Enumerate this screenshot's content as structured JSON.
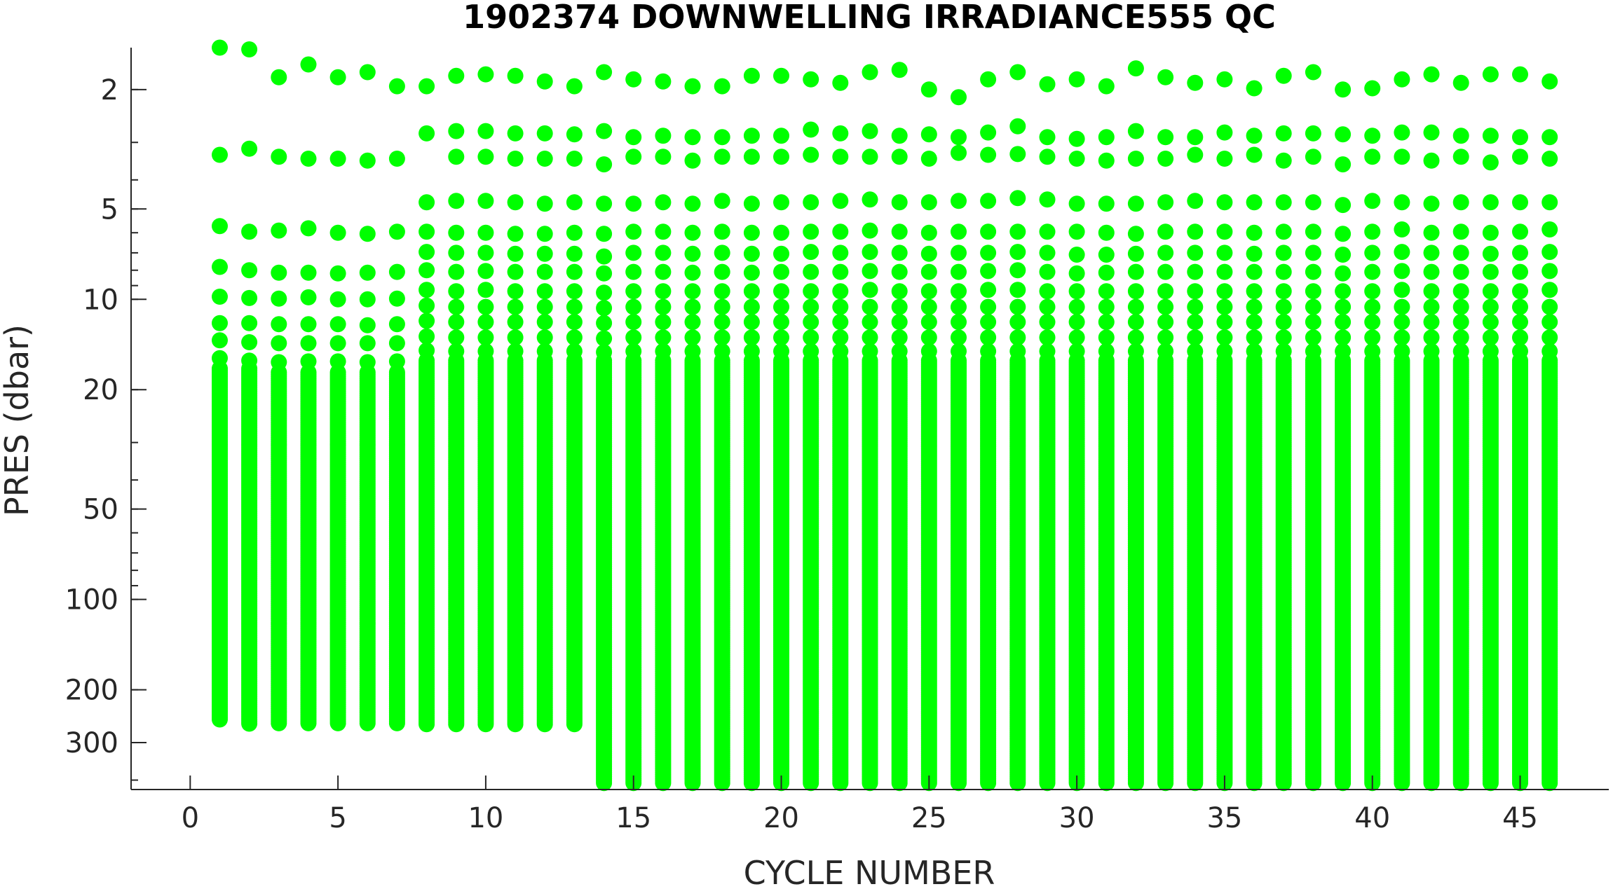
{
  "chart_data": {
    "type": "scatter",
    "title": "1902374  DOWNWELLING IRRADIANCE555 QC",
    "xlabel": "CYCLE NUMBER",
    "ylabel": "PRES (dbar)",
    "xlim": [
      -2,
      48
    ],
    "ylim": [
      1.45,
      430
    ],
    "y_scale": "log",
    "y_reversed": true,
    "grid": false,
    "legend": "none",
    "marker_color": "#00ff00",
    "x_ticks": [
      0,
      5,
      10,
      15,
      20,
      25,
      30,
      35,
      40,
      45
    ],
    "y_ticks": [
      2,
      5,
      10,
      20,
      50,
      100,
      200,
      300
    ],
    "series": [
      {
        "values": [
          {
            "cycle": 1,
            "top_pressures": [
              1.45,
              3.3,
              5.7,
              7.8,
              9.8,
              12.0,
              13.7,
              15.7
            ],
            "dense_from": 17,
            "dense_to": 255
          },
          {
            "cycle": 2,
            "top_pressures": [
              1.47,
              3.15,
              5.95,
              8.0,
              9.9,
              12.0,
              13.9,
              16.0
            ],
            "dense_from": 17,
            "dense_to": 262
          },
          {
            "cycle": 3,
            "top_pressures": [
              1.82,
              3.35,
              5.9,
              8.15,
              9.95,
              12.1,
              14.0,
              16.2
            ],
            "dense_from": 17.5,
            "dense_to": 262
          },
          {
            "cycle": 4,
            "top_pressures": [
              1.65,
              3.4,
              5.8,
              8.15,
              9.85,
              12.1,
              14.0,
              16.1
            ],
            "dense_from": 17.5,
            "dense_to": 262
          },
          {
            "cycle": 5,
            "top_pressures": [
              1.82,
              3.4,
              6.0,
              8.2,
              10.0,
              12.1,
              14.0,
              16.1
            ],
            "dense_from": 17.5,
            "dense_to": 262
          },
          {
            "cycle": 6,
            "top_pressures": [
              1.75,
              3.45,
              6.05,
              8.15,
              10.0,
              12.2,
              14.0,
              16.2
            ],
            "dense_from": 17.5,
            "dense_to": 262
          },
          {
            "cycle": 7,
            "top_pressures": [
              1.95,
              3.4,
              5.95,
              8.1,
              9.95,
              12.1,
              14.0,
              16.1
            ],
            "dense_from": 17.5,
            "dense_to": 262
          },
          {
            "cycle": 8,
            "top_pressures": [
              1.95,
              2.8,
              4.75,
              5.95,
              6.95,
              8.0,
              9.3,
              10.5,
              11.8,
              13.3,
              14.8
            ],
            "dense_from": 16,
            "dense_to": 262
          },
          {
            "cycle": 9,
            "top_pressures": [
              1.8,
              2.75,
              3.35,
              4.7,
              6.0,
              7.0,
              8.1,
              9.4,
              10.6,
              11.9,
              13.4,
              14.9
            ],
            "dense_from": 16,
            "dense_to": 262
          },
          {
            "cycle": 10,
            "top_pressures": [
              1.78,
              2.75,
              3.35,
              4.7,
              6.0,
              7.0,
              8.05,
              9.3,
              10.6,
              11.9,
              13.4,
              14.9
            ],
            "dense_from": 16,
            "dense_to": 262
          },
          {
            "cycle": 11,
            "top_pressures": [
              1.8,
              2.8,
              3.4,
              4.75,
              6.05,
              7.05,
              8.1,
              9.4,
              10.6,
              11.9,
              13.4,
              14.9
            ],
            "dense_from": 16,
            "dense_to": 262
          },
          {
            "cycle": 12,
            "top_pressures": [
              1.88,
              2.8,
              3.4,
              4.8,
              6.05,
              7.05,
              8.1,
              9.4,
              10.6,
              11.9,
              13.4,
              14.9
            ],
            "dense_from": 16,
            "dense_to": 262
          },
          {
            "cycle": 13,
            "top_pressures": [
              1.95,
              2.82,
              3.4,
              4.75,
              6.0,
              7.05,
              8.1,
              9.4,
              10.6,
              11.9,
              13.4,
              14.9
            ],
            "dense_from": 16,
            "dense_to": 262
          },
          {
            "cycle": 14,
            "top_pressures": [
              1.75,
              2.75,
              3.55,
              4.8,
              6.05,
              7.2,
              8.2,
              9.5,
              10.7,
              12.0,
              13.5,
              15.0
            ],
            "dense_from": 16,
            "dense_to": 430
          },
          {
            "cycle": 15,
            "top_pressures": [
              1.85,
              2.88,
              3.35,
              4.8,
              5.95,
              7.0,
              8.1,
              9.4,
              10.6,
              11.9,
              13.4,
              14.9
            ],
            "dense_from": 16,
            "dense_to": 430
          },
          {
            "cycle": 16,
            "top_pressures": [
              1.88,
              2.85,
              3.35,
              4.75,
              5.95,
              7.0,
              8.1,
              9.4,
              10.6,
              11.9,
              13.4,
              14.9
            ],
            "dense_from": 16,
            "dense_to": 430
          },
          {
            "cycle": 17,
            "top_pressures": [
              1.95,
              2.88,
              3.45,
              4.8,
              6.0,
              7.05,
              8.15,
              9.4,
              10.6,
              11.9,
              13.4,
              14.9
            ],
            "dense_from": 16,
            "dense_to": 430
          },
          {
            "cycle": 18,
            "top_pressures": [
              1.95,
              2.88,
              3.35,
              4.7,
              5.95,
              7.0,
              8.1,
              9.4,
              10.6,
              11.9,
              13.4,
              14.9
            ],
            "dense_from": 16,
            "dense_to": 430
          },
          {
            "cycle": 19,
            "top_pressures": [
              1.8,
              2.85,
              3.35,
              4.8,
              6.0,
              7.05,
              8.15,
              9.4,
              10.6,
              11.9,
              13.4,
              14.9
            ],
            "dense_from": 16,
            "dense_to": 430
          },
          {
            "cycle": 20,
            "top_pressures": [
              1.8,
              2.85,
              3.35,
              4.75,
              6.0,
              7.05,
              8.1,
              9.4,
              10.6,
              11.9,
              13.4,
              14.9
            ],
            "dense_from": 16,
            "dense_to": 430
          },
          {
            "cycle": 21,
            "top_pressures": [
              1.85,
              2.72,
              3.3,
              4.75,
              5.95,
              6.95,
              8.1,
              9.4,
              10.6,
              11.9,
              13.4,
              14.9
            ],
            "dense_from": 16,
            "dense_to": 430
          },
          {
            "cycle": 22,
            "top_pressures": [
              1.9,
              2.8,
              3.35,
              4.7,
              5.95,
              7.0,
              8.1,
              9.4,
              10.6,
              11.9,
              13.4,
              14.9
            ],
            "dense_from": 16,
            "dense_to": 430
          },
          {
            "cycle": 23,
            "top_pressures": [
              1.75,
              2.75,
              3.35,
              4.65,
              5.9,
              6.95,
              8.05,
              9.3,
              10.6,
              11.9,
              13.4,
              14.9
            ],
            "dense_from": 16,
            "dense_to": 430
          },
          {
            "cycle": 24,
            "top_pressures": [
              1.72,
              2.85,
              3.35,
              4.75,
              5.95,
              7.0,
              8.1,
              9.4,
              10.6,
              11.9,
              13.4,
              14.9
            ],
            "dense_from": 16,
            "dense_to": 430
          },
          {
            "cycle": 25,
            "top_pressures": [
              2.0,
              2.82,
              3.4,
              4.75,
              6.0,
              7.05,
              8.1,
              9.4,
              10.6,
              11.9,
              13.4,
              14.9
            ],
            "dense_from": 16,
            "dense_to": 430
          },
          {
            "cycle": 26,
            "top_pressures": [
              2.12,
              2.88,
              3.25,
              4.7,
              5.95,
              7.0,
              8.1,
              9.4,
              10.6,
              11.9,
              13.4,
              14.9
            ],
            "dense_from": 16,
            "dense_to": 430
          },
          {
            "cycle": 27,
            "top_pressures": [
              1.85,
              2.78,
              3.3,
              4.7,
              5.95,
              7.0,
              8.05,
              9.3,
              10.6,
              11.9,
              13.4,
              14.9
            ],
            "dense_from": 16,
            "dense_to": 430
          },
          {
            "cycle": 28,
            "top_pressures": [
              1.75,
              2.65,
              3.28,
              4.6,
              5.95,
              6.95,
              8.0,
              9.3,
              10.6,
              11.9,
              13.4,
              14.9
            ],
            "dense_from": 16,
            "dense_to": 430
          },
          {
            "cycle": 29,
            "top_pressures": [
              1.92,
              2.88,
              3.35,
              4.65,
              5.95,
              7.0,
              8.1,
              9.4,
              10.6,
              11.9,
              13.4,
              14.9
            ],
            "dense_from": 16,
            "dense_to": 430
          },
          {
            "cycle": 30,
            "top_pressures": [
              1.85,
              2.92,
              3.4,
              4.8,
              5.95,
              7.1,
              8.2,
              9.4,
              10.6,
              11.9,
              13.4,
              14.9
            ],
            "dense_from": 16,
            "dense_to": 430
          },
          {
            "cycle": 31,
            "top_pressures": [
              1.95,
              2.88,
              3.45,
              4.8,
              6.0,
              7.1,
              8.15,
              9.4,
              10.6,
              11.9,
              13.4,
              14.9
            ],
            "dense_from": 16,
            "dense_to": 430
          },
          {
            "cycle": 32,
            "top_pressures": [
              1.7,
              2.75,
              3.4,
              4.8,
              6.05,
              7.05,
              8.1,
              9.4,
              10.6,
              11.9,
              13.4,
              14.9
            ],
            "dense_from": 16,
            "dense_to": 430
          },
          {
            "cycle": 33,
            "top_pressures": [
              1.82,
              2.88,
              3.4,
              4.75,
              5.95,
              7.0,
              8.1,
              9.4,
              10.6,
              11.9,
              13.4,
              14.9
            ],
            "dense_from": 16,
            "dense_to": 430
          },
          {
            "cycle": 34,
            "top_pressures": [
              1.9,
              2.88,
              3.3,
              4.7,
              5.95,
              7.0,
              8.1,
              9.4,
              10.6,
              11.9,
              13.4,
              14.9
            ],
            "dense_from": 16,
            "dense_to": 430
          },
          {
            "cycle": 35,
            "top_pressures": [
              1.85,
              2.78,
              3.4,
              4.75,
              5.95,
              7.0,
              8.1,
              9.4,
              10.6,
              11.9,
              13.4,
              14.9
            ],
            "dense_from": 16,
            "dense_to": 430
          },
          {
            "cycle": 36,
            "top_pressures": [
              1.98,
              2.85,
              3.3,
              4.75,
              6.0,
              7.05,
              8.1,
              9.4,
              10.6,
              11.9,
              13.4,
              14.9
            ],
            "dense_from": 16,
            "dense_to": 430
          },
          {
            "cycle": 37,
            "top_pressures": [
              1.8,
              2.8,
              3.45,
              4.75,
              5.95,
              7.0,
              8.1,
              9.4,
              10.6,
              11.9,
              13.4,
              14.9
            ],
            "dense_from": 16,
            "dense_to": 430
          },
          {
            "cycle": 38,
            "top_pressures": [
              1.75,
              2.8,
              3.35,
              4.75,
              5.95,
              7.0,
              8.1,
              9.4,
              10.6,
              11.9,
              13.4,
              14.9
            ],
            "dense_from": 16,
            "dense_to": 430
          },
          {
            "cycle": 39,
            "top_pressures": [
              2.0,
              2.82,
              3.55,
              4.85,
              6.05,
              7.1,
              8.2,
              9.4,
              10.6,
              11.9,
              13.4,
              14.9
            ],
            "dense_from": 16,
            "dense_to": 430
          },
          {
            "cycle": 40,
            "top_pressures": [
              1.98,
              2.85,
              3.35,
              4.7,
              5.95,
              7.0,
              8.1,
              9.4,
              10.6,
              11.9,
              13.4,
              14.9
            ],
            "dense_from": 16,
            "dense_to": 430
          },
          {
            "cycle": 41,
            "top_pressures": [
              1.85,
              2.78,
              3.35,
              4.75,
              5.85,
              6.95,
              8.05,
              9.3,
              10.6,
              11.9,
              13.4,
              14.9
            ],
            "dense_from": 16,
            "dense_to": 430
          },
          {
            "cycle": 42,
            "top_pressures": [
              1.78,
              2.78,
              3.45,
              4.8,
              6.0,
              7.0,
              8.1,
              9.4,
              10.6,
              11.9,
              13.4,
              14.9
            ],
            "dense_from": 16,
            "dense_to": 430
          },
          {
            "cycle": 43,
            "top_pressures": [
              1.9,
              2.85,
              3.35,
              4.75,
              5.95,
              7.0,
              8.1,
              9.4,
              10.6,
              11.9,
              13.4,
              14.9
            ],
            "dense_from": 16,
            "dense_to": 430
          },
          {
            "cycle": 44,
            "top_pressures": [
              1.78,
              2.85,
              3.5,
              4.75,
              6.0,
              7.05,
              8.1,
              9.4,
              10.6,
              11.9,
              13.4,
              14.9
            ],
            "dense_from": 16,
            "dense_to": 430
          },
          {
            "cycle": 45,
            "top_pressures": [
              1.78,
              2.88,
              3.35,
              4.75,
              5.95,
              7.0,
              8.1,
              9.4,
              10.6,
              11.9,
              13.4,
              14.9
            ],
            "dense_from": 16,
            "dense_to": 430
          },
          {
            "cycle": 46,
            "top_pressures": [
              1.88,
              2.88,
              3.4,
              4.75,
              5.85,
              6.95,
              8.05,
              9.3,
              10.6,
              11.9,
              13.4,
              14.9
            ],
            "dense_from": 16,
            "dense_to": 430
          }
        ]
      }
    ]
  }
}
